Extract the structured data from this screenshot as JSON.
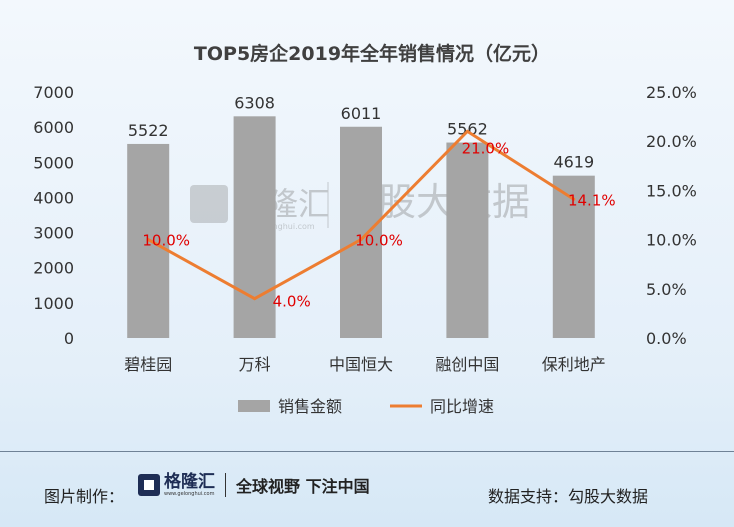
{
  "chart_data": {
    "type": "bar",
    "title": "TOP5房企2019年全年销售情况（亿元）",
    "categories": [
      "碧桂园",
      "万科",
      "中国恒大",
      "融创中国",
      "保利地产"
    ],
    "series": [
      {
        "name": "销售金额",
        "type": "bar",
        "axis": "left",
        "values": [
          5522,
          6308,
          6011,
          5562,
          4619
        ],
        "labels": [
          "5522",
          "6308",
          "6011",
          "5562",
          "4619"
        ],
        "color": "#a5a5a5"
      },
      {
        "name": "同比增速",
        "type": "line",
        "axis": "right",
        "values": [
          10.0,
          4.0,
          10.0,
          21.0,
          14.1
        ],
        "labels": [
          "10.0%",
          "4.0%",
          "10.0%",
          "21.0%",
          "14.1%"
        ],
        "color": "#ed7d31",
        "label_color": "#e00000"
      }
    ],
    "ylim": [
      0,
      7000
    ],
    "y_ticks": [
      "0",
      "1000",
      "2000",
      "3000",
      "4000",
      "5000",
      "6000",
      "7000"
    ],
    "y2lim": [
      0,
      25
    ],
    "y2_ticks": [
      "0.0%",
      "5.0%",
      "10.0%",
      "15.0%",
      "20.0%",
      "25.0%"
    ],
    "legend": "bottom",
    "grid": false
  },
  "watermark": {
    "brand": "格隆汇",
    "site": "www.gelonghui.com",
    "partner": "勾股大数据"
  },
  "footer": {
    "made_by_label": "图片制作：",
    "brand": "格隆汇",
    "brand_site": "www.gelonghui.com",
    "slogan": "全球视野 下注中国",
    "data_support": "数据支持：勾股大数据"
  }
}
